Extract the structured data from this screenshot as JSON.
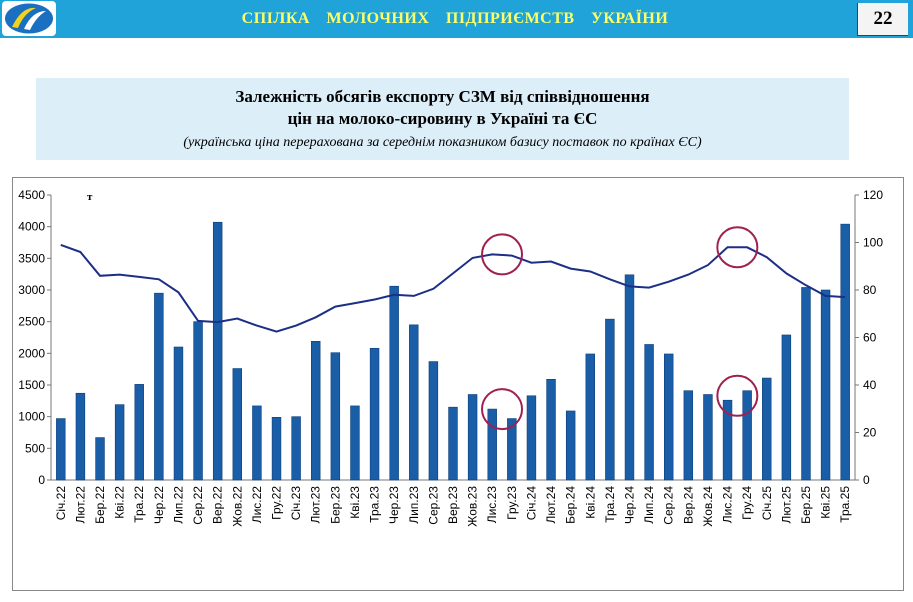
{
  "header": {
    "title": "СПІЛКА   МОЛОЧНИХ   ПІДПРИЄМСТВ   УКРАЇНИ",
    "page_number": "22",
    "accent_color": "#1fa3d8",
    "title_color": "#ffff66",
    "logo_icon": "union-logo-icon"
  },
  "chart_data": {
    "type": "bar",
    "title_line1": "Залежність обсягів експорту СЗМ від співвідношення",
    "title_line2": "цін на молоко-сировину  в Україні та ЄС",
    "subtitle": "(українська ціна перерахована за середнім показником базису поставок по країнах ЄС)",
    "ylabel": "т",
    "categories": [
      "Січ.22",
      "Лют.22",
      "Бер.22",
      "Кві.22",
      "Тра.22",
      "Чер.22",
      "Лип.22",
      "Сер.22",
      "Вер.22",
      "Жов.22",
      "Лис.22",
      "Гру.22",
      "Січ.23",
      "Лют.23",
      "Бер.23",
      "Кві.23",
      "Тра.23",
      "Чер.23",
      "Лип.23",
      "Сер.23",
      "Вер.23",
      "Жов.23",
      "Лис.23",
      "Гру.23",
      "Січ.24",
      "Лют.24",
      "Бер.24",
      "Кві.24",
      "Тра.24",
      "Чер.24",
      "Лип.24",
      "Сер.24",
      "Вер.24",
      "Жов.24",
      "Лис.24",
      "Гру.24",
      "Січ.25",
      "Лют.25",
      "Бер.25",
      "Кві.25",
      "Тра.25"
    ],
    "series": [
      {
        "type": "bar",
        "axis": "left",
        "color": "#1a5ea8",
        "values": [
          970,
          1370,
          670,
          1190,
          1510,
          2950,
          2100,
          2500,
          4070,
          1760,
          1170,
          990,
          1000,
          2190,
          2010,
          1170,
          2080,
          3060,
          2450,
          1870,
          1150,
          1350,
          1120,
          970,
          1330,
          1590,
          1090,
          1990,
          2540,
          3240,
          2140,
          1990,
          1410,
          1350,
          1260,
          1410,
          1610,
          2290,
          3040,
          3000,
          4040
        ]
      },
      {
        "type": "line",
        "axis": "right",
        "color": "#1c2f86",
        "values": [
          99,
          96,
          86,
          86.5,
          85.5,
          84.5,
          79,
          67,
          66.5,
          68,
          65,
          62.5,
          65,
          68.5,
          73,
          74.5,
          76,
          78,
          77.5,
          80.5,
          87,
          93.5,
          95,
          94.5,
          91.5,
          92,
          89,
          87.8,
          84.5,
          81.5,
          81,
          83.5,
          86.5,
          90.5,
          98,
          98,
          93.8,
          87,
          82,
          77.5,
          77
        ]
      }
    ],
    "ylim": [
      0,
      4500
    ],
    "yticks": [
      "0",
      "500",
      "1000",
      "1500",
      "2000",
      "2500",
      "3000",
      "3500",
      "4000",
      "4500"
    ],
    "y2lim": [
      0,
      120
    ],
    "y2ticks": [
      "0",
      "20",
      "40",
      "60",
      "80",
      "100",
      "120"
    ],
    "grid": false,
    "annotations": [
      {
        "shape": "circle",
        "index": 23,
        "axis": "right",
        "value": 95,
        "color": "#a02050"
      },
      {
        "shape": "circle",
        "index": 23,
        "axis": "left",
        "value": 1120,
        "color": "#a02050"
      },
      {
        "shape": "circle",
        "index": 35,
        "axis": "right",
        "value": 98,
        "color": "#a02050"
      },
      {
        "shape": "circle",
        "index": 35,
        "axis": "left",
        "value": 1330,
        "color": "#a02050"
      }
    ]
  }
}
